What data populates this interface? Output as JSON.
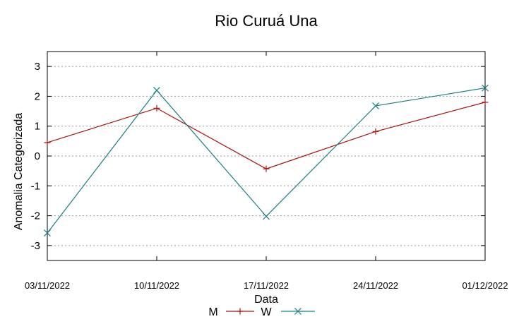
{
  "chart_data": {
    "type": "line",
    "title": "Rio Curuá Una",
    "xlabel": "Data",
    "ylabel": "Anomalia Categorizada",
    "categories": [
      "03/11/2022",
      "10/11/2022",
      "17/11/2022",
      "24/11/2022",
      "01/12/2022"
    ],
    "yticks": [
      "3",
      "2",
      "1",
      "0",
      "-1",
      "-2",
      "-3"
    ],
    "ylim": [
      -3.5,
      3.5
    ],
    "grid": true,
    "legend_position": "bottom",
    "series": [
      {
        "name": "M",
        "color": "#aa1111",
        "marker": "plus",
        "values": [
          0.45,
          1.6,
          -0.43,
          0.82,
          1.8
        ]
      },
      {
        "name": "W",
        "color": "#1a8080",
        "marker": "cross",
        "values": [
          -2.58,
          2.2,
          -2.02,
          1.68,
          2.28
        ]
      }
    ]
  }
}
